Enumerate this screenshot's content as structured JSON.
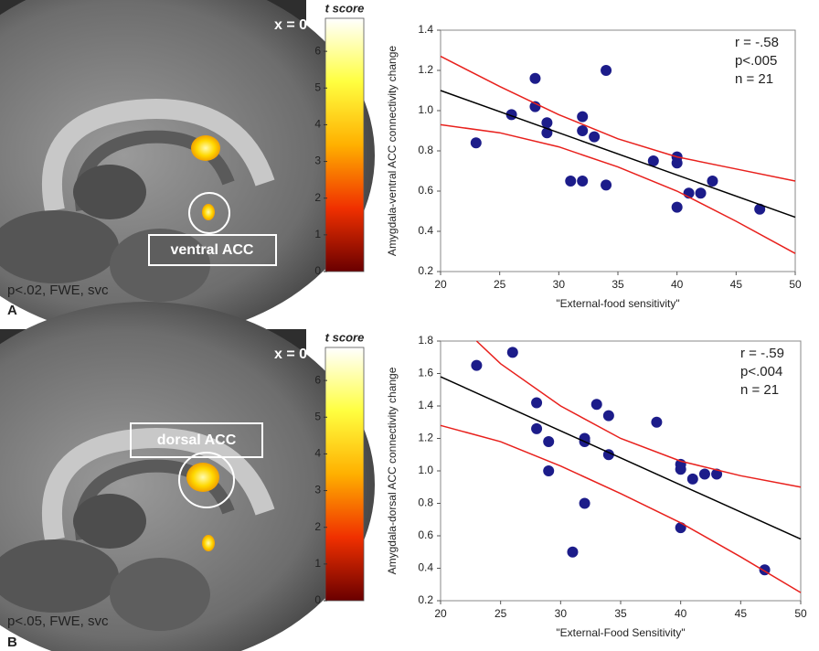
{
  "chart_data": [
    {
      "type": "scatter",
      "y_label": "Amygdala-ventral ACC connectivity change",
      "x_label": "\"External-food sensitivity\"",
      "xlim": [
        20,
        50
      ],
      "xticks": [
        20,
        25,
        30,
        35,
        40,
        45,
        50
      ],
      "ylim": [
        0.2,
        1.4
      ],
      "yticks": [
        0.2,
        0.4,
        0.6,
        0.8,
        {
          "value": 1,
          "label": "1.0"
        },
        1.2,
        1.4
      ],
      "annotations": [
        "r = -.58",
        "p<.005",
        "n = 21"
      ],
      "series": [
        {
          "color": "#1c1c8a",
          "marker": "circle",
          "x": [
            23,
            26,
            28,
            28,
            29,
            29,
            31,
            32,
            32,
            32,
            33,
            34,
            34,
            38,
            40,
            40,
            40,
            41,
            42,
            43,
            47
          ],
          "values": [
            0.84,
            0.98,
            1.16,
            1.02,
            0.94,
            0.89,
            0.65,
            0.97,
            0.9,
            0.65,
            0.87,
            1.2,
            0.63,
            0.75,
            0.77,
            0.74,
            0.52,
            0.59,
            0.59,
            0.65,
            0.51
          ]
        },
        {
          "color": "#000000",
          "x": [
            20,
            50
          ],
          "values": [
            1.1,
            0.47
          ]
        },
        {
          "color": "#e8201c",
          "x": [
            20,
            25,
            30,
            35,
            40,
            45,
            50
          ],
          "values": [
            1.27,
            1.12,
            0.98,
            0.86,
            0.77,
            0.71,
            0.65
          ]
        },
        {
          "color": "#e8201c",
          "x": [
            20,
            25,
            30,
            35,
            40,
            45,
            50
          ],
          "values": [
            0.93,
            0.89,
            0.82,
            0.72,
            0.6,
            0.45,
            0.29
          ]
        }
      ]
    },
    {
      "type": "scatter",
      "y_label": "Amygdala-dorsal ACC connectivity change",
      "x_label": "\"External-Food Sensitivity\"",
      "xlim": [
        20,
        50
      ],
      "xticks": [
        20,
        25,
        30,
        35,
        40,
        45,
        50
      ],
      "ylim": [
        0.2,
        1.8
      ],
      "yticks": [
        0.2,
        0.4,
        0.6,
        0.8,
        {
          "value": 1,
          "label": "1.0"
        },
        1.2,
        1.4,
        1.6,
        1.8
      ],
      "annotations": [
        "r = -.59",
        "p<.004",
        "n = 21"
      ],
      "series": [
        {
          "color": "#1c1c8a",
          "marker": "circle",
          "x": [
            23,
            26,
            28,
            28,
            29,
            29,
            31,
            32,
            32,
            32,
            33,
            34,
            34,
            38,
            40,
            40,
            40,
            41,
            42,
            43,
            47
          ],
          "values": [
            1.65,
            1.73,
            1.42,
            1.26,
            1.18,
            1.0,
            0.5,
            1.2,
            1.18,
            0.8,
            1.41,
            1.34,
            1.1,
            1.3,
            1.04,
            1.01,
            0.65,
            0.95,
            0.98,
            0.98,
            0.39
          ]
        },
        {
          "color": "#000000",
          "x": [
            20,
            50
          ],
          "values": [
            1.58,
            0.58
          ]
        },
        {
          "color": "#e8201c",
          "x": [
            23,
            25,
            30,
            35,
            40,
            45,
            50
          ],
          "values": [
            1.8,
            1.66,
            1.4,
            1.2,
            1.06,
            0.97,
            0.9
          ]
        },
        {
          "color": "#e8201c",
          "x": [
            20,
            25,
            30,
            35,
            40,
            45,
            50
          ],
          "values": [
            1.28,
            1.18,
            1.03,
            0.86,
            0.68,
            0.47,
            0.25
          ]
        }
      ]
    }
  ],
  "panels": [
    {
      "letter": "A",
      "slice": "x = 0",
      "region": "ventral ACC",
      "threshold": "p<.02, FWE, svc",
      "colorbar": {
        "title": "t score",
        "lim": [
          0,
          6.9
        ],
        "ticks": [
          0,
          1,
          2,
          3,
          4,
          5,
          6
        ]
      }
    },
    {
      "letter": "B",
      "slice": "x = 0",
      "region": "dorsal ACC",
      "threshold": "p<.05, FWE, svc",
      "colorbar": {
        "title": "t score",
        "lim": [
          0,
          6.9
        ],
        "ticks": [
          0,
          1,
          2,
          3,
          4,
          5,
          6
        ]
      }
    }
  ]
}
